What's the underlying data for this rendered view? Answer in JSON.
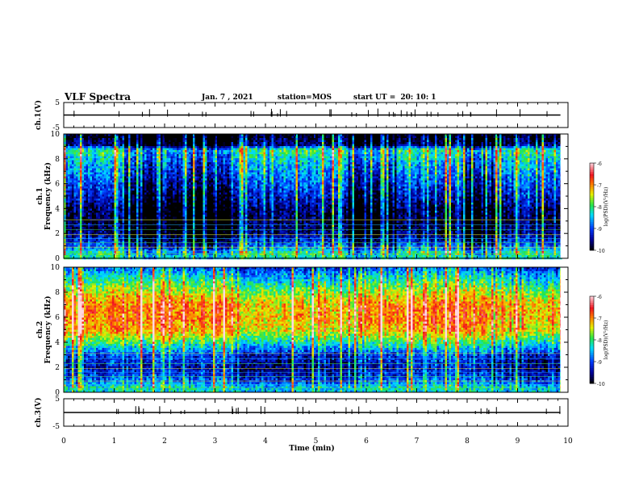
{
  "header": {
    "title": "VLF Spectra",
    "date": "Jan. 7 , 2021",
    "station_label": "station=MOS",
    "start_label": "start UT =",
    "start_time": "20: 10: 1"
  },
  "chart_data": [
    {
      "type": "line",
      "panel": "ch.1(V)",
      "ylabel": "ch.1(V)",
      "ylim": [
        -5,
        5
      ],
      "yticks": [
        "5",
        "-5"
      ],
      "x": [
        0,
        9.85
      ],
      "y": [
        0,
        0
      ]
    },
    {
      "type": "heatmap",
      "panel": "ch.1",
      "ylabel": "ch.1 Frequency (kHz)",
      "ylim": [
        0,
        10
      ],
      "yticks": [
        "0",
        "2",
        "4",
        "6",
        "8",
        "10"
      ],
      "xlim": [
        0,
        10
      ],
      "data_extent_min": 9.85,
      "colorbar": {
        "label": "log(PSD)(V²/Hz)",
        "min": -10,
        "max": -6,
        "ticks": [
          "-6",
          "-7",
          "-8",
          "-9",
          "-10"
        ]
      },
      "profile_khz": [
        0,
        0.5,
        1,
        2,
        3,
        4,
        5,
        6,
        7,
        8,
        8.8,
        9.2,
        10
      ],
      "profile_log_psd": [
        -8.4,
        -8.0,
        -8.8,
        -9.6,
        -9.8,
        -9.7,
        -9.3,
        -9.0,
        -8.7,
        -8.4,
        -8.0,
        -9.6,
        -10
      ],
      "quiet_intervals_min": [
        [
          1.2,
          3.3
        ],
        [
          5.6,
          6.6
        ],
        [
          7.9,
          8.5
        ]
      ]
    },
    {
      "type": "heatmap",
      "panel": "ch.2",
      "ylabel": "ch.2 Frequency (kHz)",
      "ylim": [
        0,
        10
      ],
      "yticks": [
        "0",
        "2",
        "4",
        "6",
        "8",
        "10"
      ],
      "xlim": [
        0,
        10
      ],
      "data_extent_min": 9.85,
      "colorbar": {
        "label": "log(PSD)(V²/Hz)",
        "min": -10,
        "max": -6,
        "ticks": [
          "-6",
          "-7",
          "-8",
          "-9",
          "-10"
        ]
      },
      "profile_khz": [
        0,
        0.5,
        1,
        2,
        3,
        4,
        5,
        6,
        7,
        8,
        8.8,
        9.5,
        10
      ],
      "profile_log_psd": [
        -8.4,
        -8.2,
        -8.8,
        -9.3,
        -9.0,
        -8.0,
        -7.1,
        -6.9,
        -6.9,
        -7.4,
        -7.9,
        -8.4,
        -8.8
      ],
      "quiet_intervals_min": [
        [
          3.3,
          6.0
        ],
        [
          8.5,
          9.8
        ]
      ]
    },
    {
      "type": "line",
      "panel": "ch.3(V)",
      "ylabel": "ch.3(V)",
      "ylim": [
        -5,
        5
      ],
      "yticks": [
        "5",
        "-5"
      ],
      "x": [
        0,
        9.85
      ],
      "y": [
        0,
        0
      ]
    }
  ],
  "xaxis": {
    "label": "Time (min)",
    "ticks": [
      "0",
      "1",
      "2",
      "3",
      "4",
      "5",
      "6",
      "7",
      "8",
      "9",
      "10"
    ],
    "lim": [
      0,
      10
    ]
  }
}
